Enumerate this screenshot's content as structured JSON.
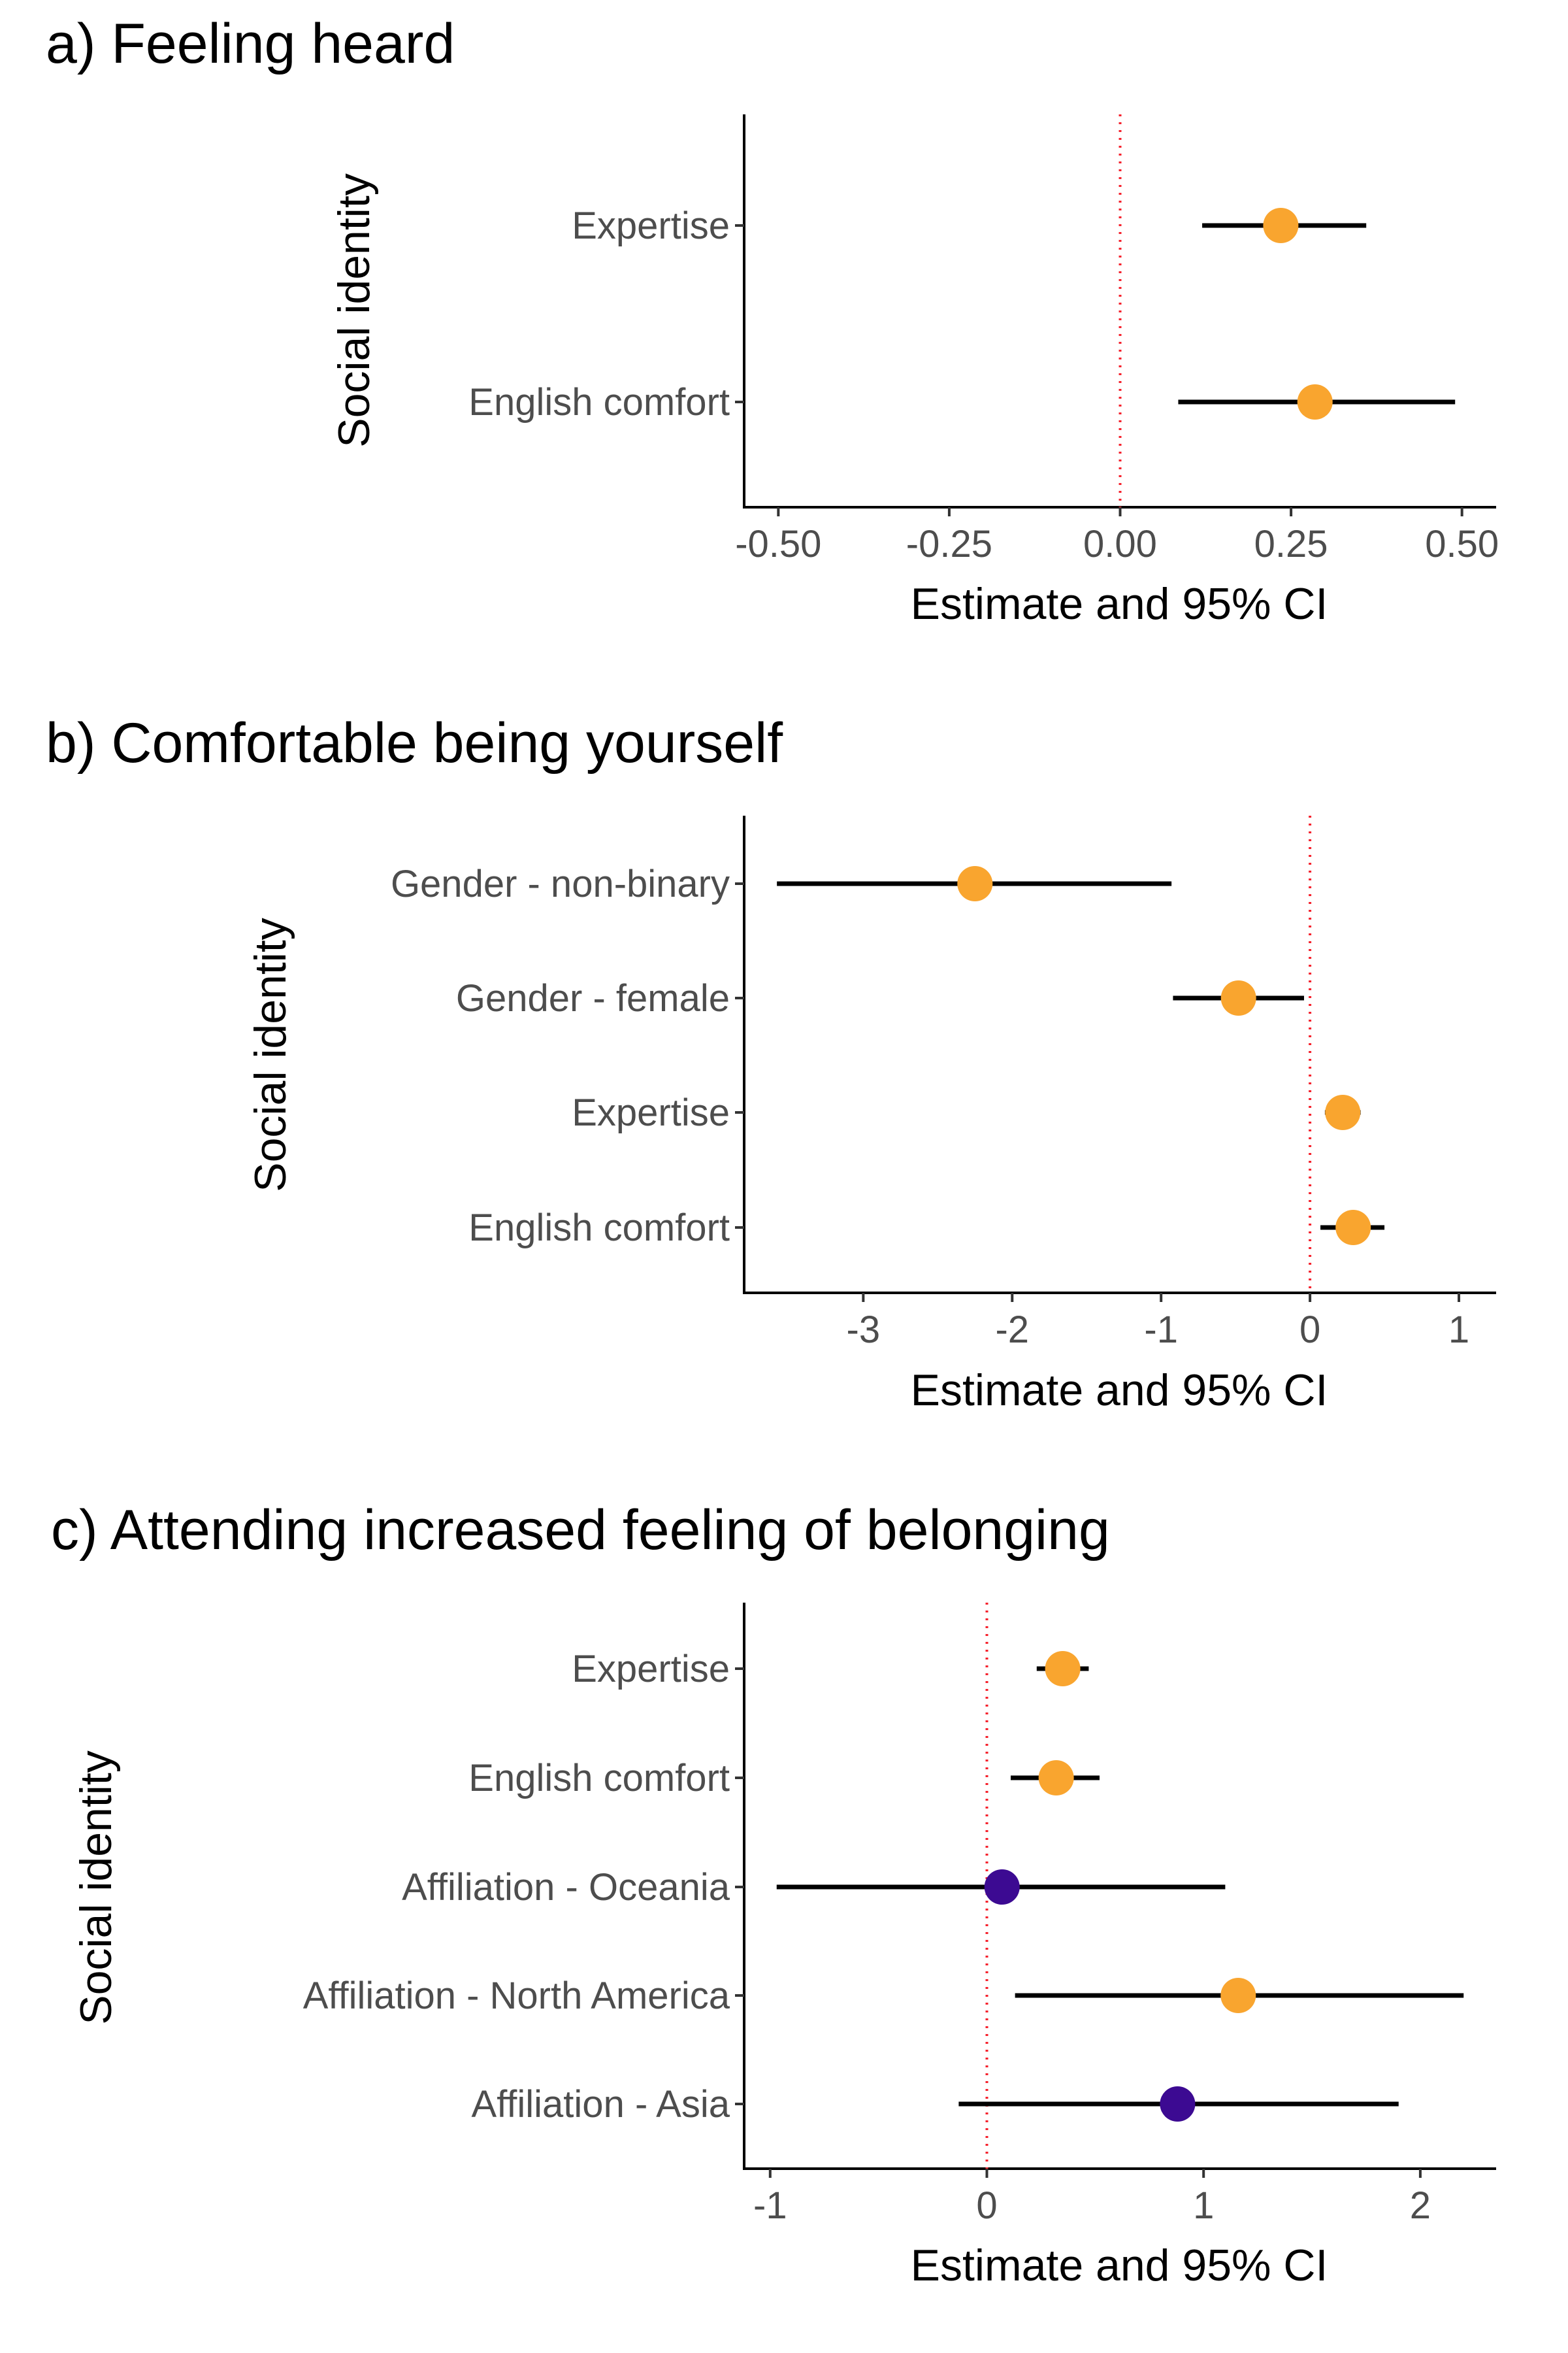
{
  "chart_data": [
    {
      "type": "forest",
      "title": "a) Feeling heard",
      "xlabel": "Estimate and 95% CI",
      "ylabel": "Social identity",
      "xlim": [
        -0.55,
        0.55
      ],
      "xticks": [
        -0.5,
        -0.25,
        0,
        0.25,
        0.5
      ],
      "xtick_labels": [
        "-0.50",
        "-0.25",
        "0.00",
        "0.25",
        "0.50"
      ],
      "reference_line": 0,
      "grid": false,
      "categories": [
        "Expertise",
        "English comfort"
      ],
      "estimates": [
        0.235,
        0.285
      ],
      "ci_low": [
        0.12,
        0.085
      ],
      "ci_high": [
        0.36,
        0.49
      ],
      "point_colors": [
        "#f9a52f",
        "#f9a52f"
      ]
    },
    {
      "type": "forest",
      "title": "b) Comfortable being yourself",
      "xlabel": "Estimate and 95% CI",
      "ylabel": "Social identity",
      "xlim": [
        -3.8,
        1.25
      ],
      "xticks": [
        -3,
        -2,
        -1,
        0,
        1
      ],
      "xtick_labels": [
        "-3",
        "-2",
        "-1",
        "0",
        "1"
      ],
      "reference_line": 0,
      "grid": false,
      "categories": [
        "Gender - non-binary",
        "Gender - female",
        "Expertise",
        "English comfort"
      ],
      "estimates": [
        -2.25,
        -0.48,
        0.22,
        0.29
      ],
      "ci_low": [
        -3.58,
        -0.92,
        0.1,
        0.07
      ],
      "ci_high": [
        -0.93,
        -0.04,
        0.34,
        0.5
      ],
      "point_colors": [
        "#f9a52f",
        "#f9a52f",
        "#f9a52f",
        "#f9a52f"
      ]
    },
    {
      "type": "forest",
      "title": "c) Attending increased feeling of belonging",
      "xlabel": "Estimate and 95% CI",
      "ylabel": "Social identity",
      "xlim": [
        -1.12,
        2.35
      ],
      "xticks": [
        -1,
        0,
        1,
        2
      ],
      "xtick_labels": [
        "-1",
        "0",
        "1",
        "2"
      ],
      "reference_line": 0,
      "grid": false,
      "categories": [
        "Expertise",
        "English comfort",
        "Affiliation - Oceania",
        "Affiliation - North America",
        "Affiliation - Asia"
      ],
      "estimates": [
        0.35,
        0.32,
        0.07,
        1.16,
        0.88
      ],
      "ci_low": [
        0.23,
        0.11,
        -0.97,
        0.13,
        -0.13
      ],
      "ci_high": [
        0.47,
        0.52,
        1.1,
        2.2,
        1.9
      ],
      "point_colors": [
        "#f9a52f",
        "#f9a52f",
        "#3c0a92",
        "#f9a52f",
        "#3c0a92"
      ]
    }
  ]
}
